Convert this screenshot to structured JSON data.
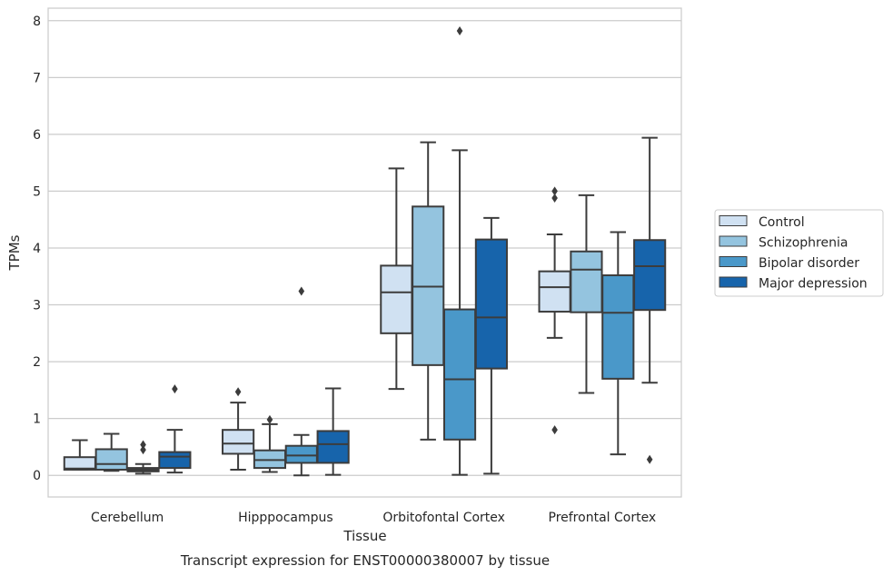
{
  "caption": "Transcript expression for ENST00000380007 by tissue",
  "chart_data": {
    "type": "boxplot",
    "title": "",
    "xlabel": "Tissue",
    "ylabel": "TPMs",
    "ylim": [
      -0.38,
      8.22
    ],
    "yticks": [
      0,
      1,
      2,
      3,
      4,
      5,
      6,
      7,
      8
    ],
    "grid": "horizontal",
    "legend_position": "right",
    "categories": [
      "Cerebellum",
      "Hipppocampus",
      "Orbitofontal Cortex",
      "Prefrontal Cortex"
    ],
    "series": [
      {
        "name": "Control",
        "color": "#d0e1f2",
        "boxes": [
          {
            "whislo": 0.1,
            "q1": 0.1,
            "med": 0.12,
            "q3": 0.32,
            "whishi": 0.62,
            "fliers": []
          },
          {
            "whislo": 0.1,
            "q1": 0.38,
            "med": 0.56,
            "q3": 0.8,
            "whishi": 1.28,
            "fliers": [
              1.47
            ]
          },
          {
            "whislo": 1.52,
            "q1": 2.5,
            "med": 3.22,
            "q3": 3.69,
            "whishi": 5.4,
            "fliers": []
          },
          {
            "whislo": 2.42,
            "q1": 2.88,
            "med": 3.31,
            "q3": 3.59,
            "whishi": 4.24,
            "fliers": [
              4.88,
              5.0,
              0.8
            ]
          }
        ]
      },
      {
        "name": "Schizophrenia",
        "color": "#94c4df",
        "boxes": [
          {
            "whislo": 0.08,
            "q1": 0.1,
            "med": 0.2,
            "q3": 0.46,
            "whishi": 0.73,
            "fliers": []
          },
          {
            "whislo": 0.06,
            "q1": 0.13,
            "med": 0.27,
            "q3": 0.44,
            "whishi": 0.9,
            "fliers": [
              0.98
            ]
          },
          {
            "whislo": 0.63,
            "q1": 1.94,
            "med": 3.32,
            "q3": 4.73,
            "whishi": 5.86,
            "fliers": []
          },
          {
            "whislo": 1.45,
            "q1": 2.87,
            "med": 3.62,
            "q3": 3.94,
            "whishi": 4.93,
            "fliers": []
          }
        ]
      },
      {
        "name": "Bipolar disorder",
        "color": "#4a98c9",
        "boxes": [
          {
            "whislo": 0.03,
            "q1": 0.07,
            "med": 0.1,
            "q3": 0.13,
            "whishi": 0.2,
            "fliers": [
              0.45,
              0.54
            ]
          },
          {
            "whislo": 0.0,
            "q1": 0.22,
            "med": 0.35,
            "q3": 0.52,
            "whishi": 0.71,
            "fliers": [
              3.24
            ]
          },
          {
            "whislo": 0.01,
            "q1": 0.63,
            "med": 1.69,
            "q3": 2.92,
            "whishi": 5.72,
            "fliers": [
              7.82
            ]
          },
          {
            "whislo": 0.37,
            "q1": 1.7,
            "med": 2.86,
            "q3": 3.52,
            "whishi": 4.28,
            "fliers": []
          }
        ]
      },
      {
        "name": "Major depression",
        "color": "#1764ab",
        "boxes": [
          {
            "whislo": 0.05,
            "q1": 0.13,
            "med": 0.33,
            "q3": 0.41,
            "whishi": 0.8,
            "fliers": [
              1.52
            ]
          },
          {
            "whislo": 0.01,
            "q1": 0.22,
            "med": 0.55,
            "q3": 0.78,
            "whishi": 1.53,
            "fliers": []
          },
          {
            "whislo": 0.03,
            "q1": 1.88,
            "med": 2.78,
            "q3": 4.15,
            "whishi": 4.53,
            "fliers": []
          },
          {
            "whislo": 1.63,
            "q1": 2.91,
            "med": 3.68,
            "q3": 4.14,
            "whishi": 5.94,
            "fliers": [
              0.28
            ]
          }
        ]
      }
    ]
  }
}
